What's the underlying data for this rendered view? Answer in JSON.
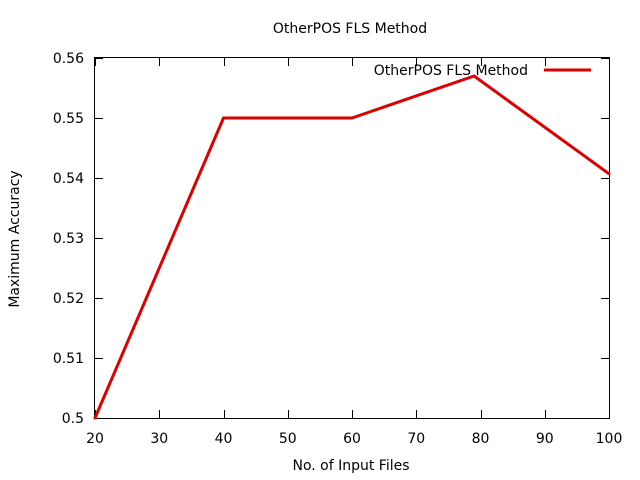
{
  "chart_data": {
    "type": "line",
    "title": "OtherPOS FLS Method",
    "xlabel": "No. of Input Files",
    "ylabel": "Maximum Accuracy",
    "xlim": [
      20,
      100
    ],
    "ylim": [
      0.5,
      0.56
    ],
    "xticks": [
      20,
      30,
      40,
      50,
      60,
      70,
      80,
      90,
      100
    ],
    "yticks": [
      0.5,
      0.51,
      0.52,
      0.53,
      0.54,
      0.55,
      0.56
    ],
    "ytick_labels": [
      "0.5",
      "0.51",
      "0.52",
      "0.53",
      "0.54",
      "0.55",
      "0.56"
    ],
    "grid": false,
    "legend_position": "top-right",
    "series": [
      {
        "name": "OtherPOS FLS Method",
        "color": "#dd0000",
        "x": [
          20,
          40,
          60,
          79,
          100
        ],
        "y": [
          0.5,
          0.55,
          0.55,
          0.557,
          0.5407
        ]
      }
    ]
  }
}
